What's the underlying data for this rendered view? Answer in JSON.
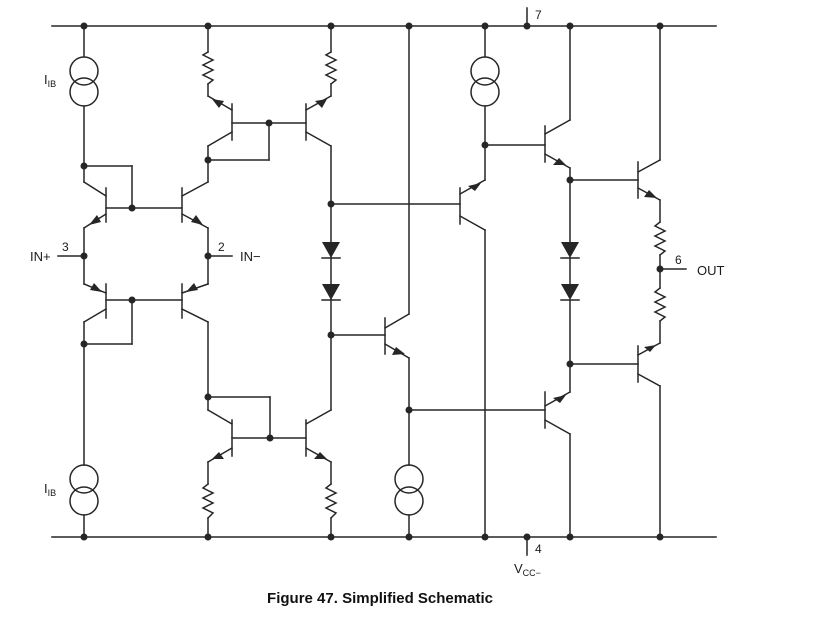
{
  "caption": "Figure 47.  Simplified Schematic",
  "labels": {
    "iib_top": "I",
    "iib_top_sub": "IB",
    "iib_bottom": "I",
    "iib_bottom_sub": "IB",
    "in_plus": "IN+",
    "in_plus_pin": "3",
    "in_minus": "IN−",
    "in_minus_pin": "2",
    "vcc_plus_pin": "7",
    "vcc_minus_pin": "4",
    "vcc_minus": "V",
    "vcc_minus_sub": "CC−",
    "out": "OUT",
    "out_pin": "6"
  }
}
